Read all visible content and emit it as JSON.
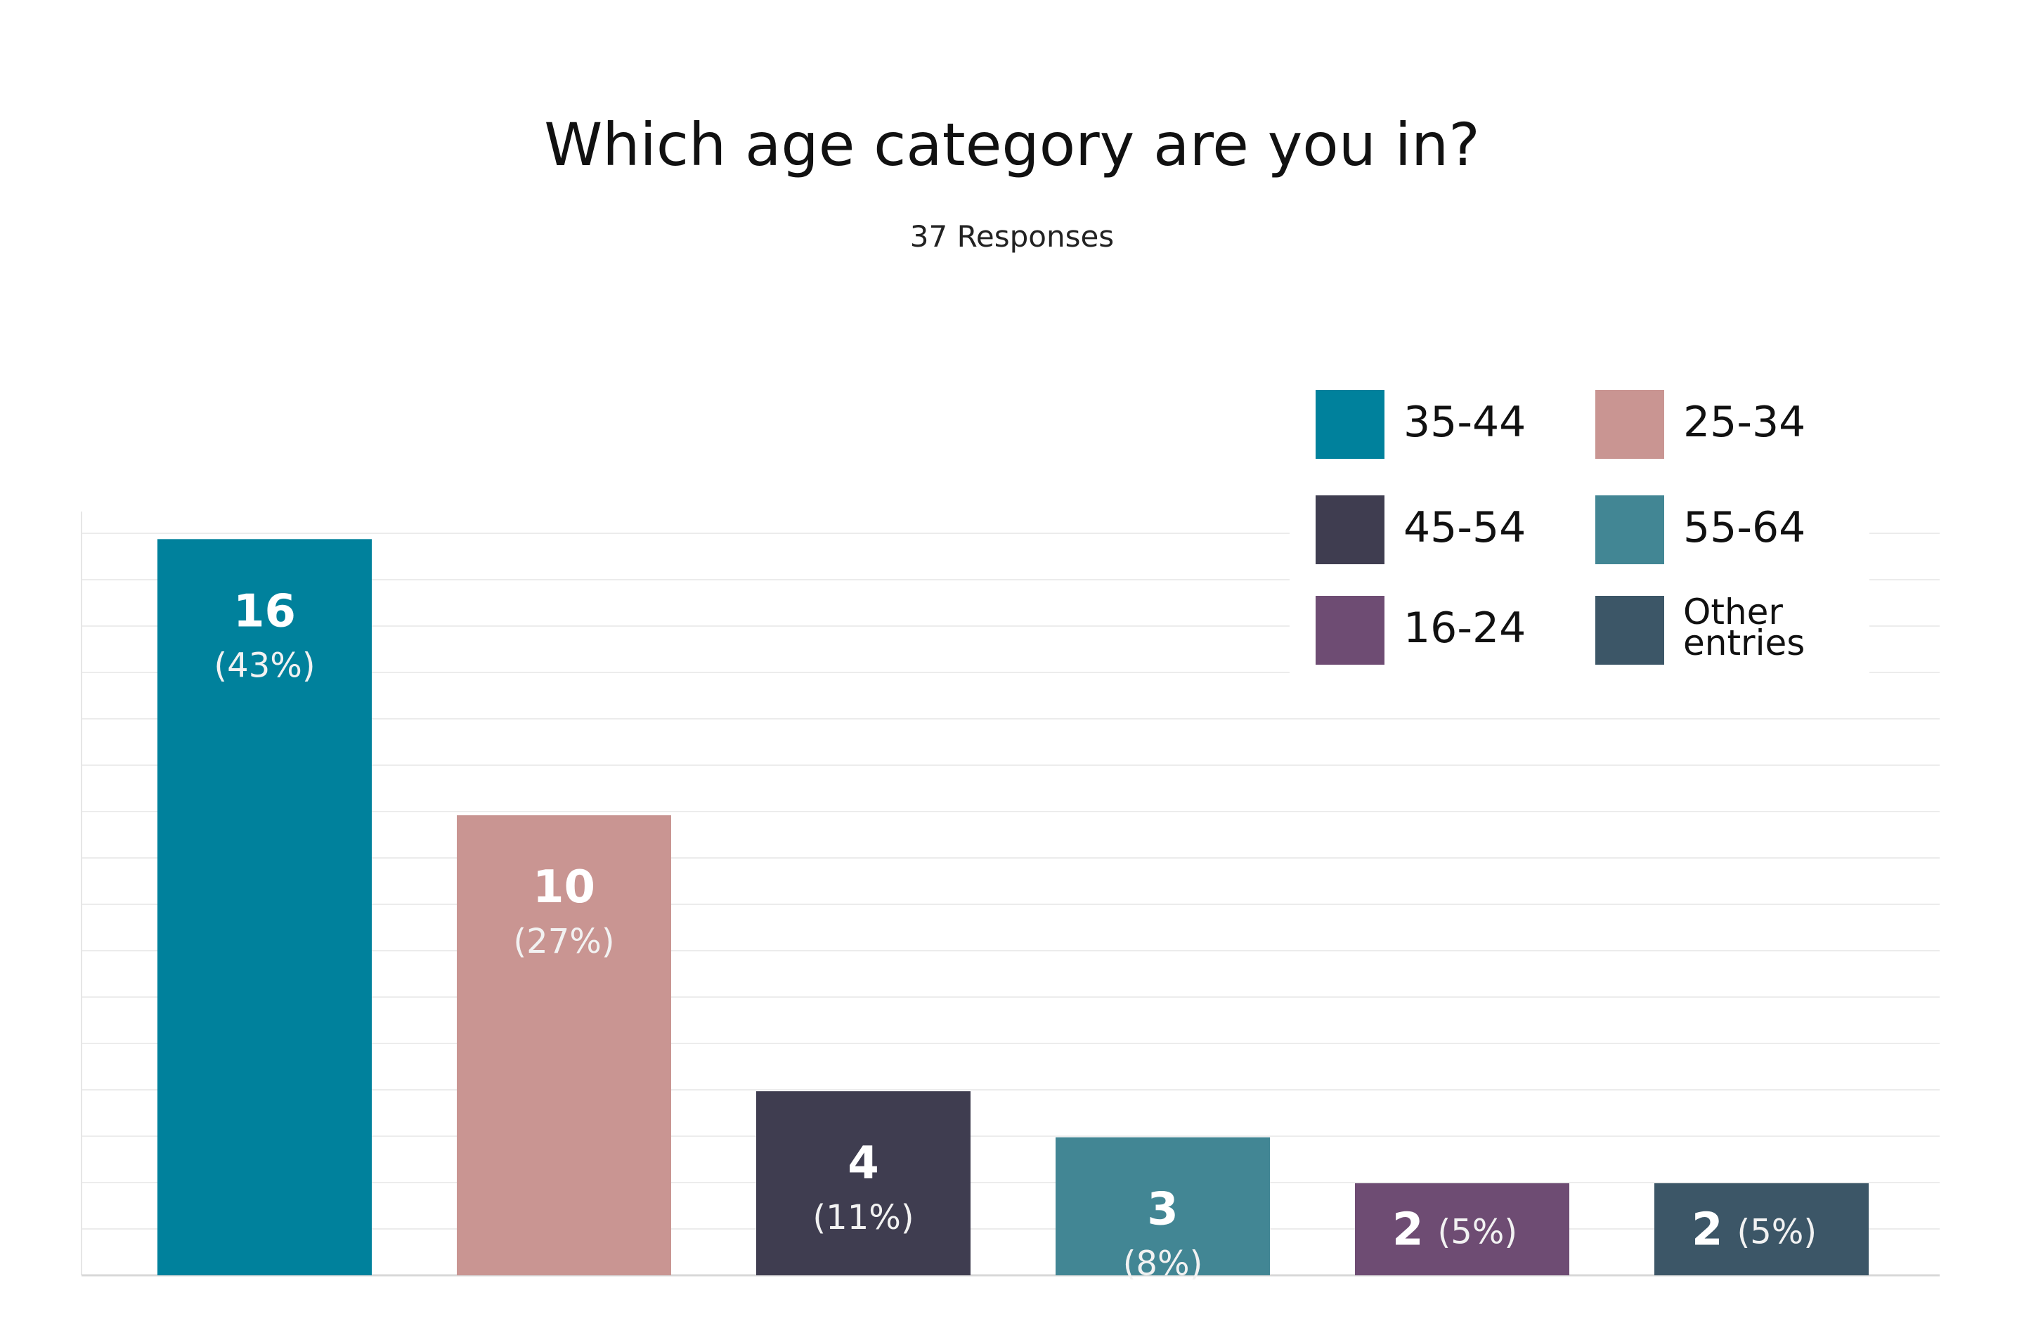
{
  "chart_data": {
    "type": "bar",
    "title": "Which age category are you in?",
    "subtitle": "37 Responses",
    "categories": [
      "35-44",
      "25-34",
      "45-54",
      "55-64",
      "16-24",
      "Other entries"
    ],
    "values": [
      16,
      10,
      4,
      3,
      2,
      2
    ],
    "percent_labels": [
      "(43%)",
      "(27%)",
      "(11%)",
      "(8%)",
      "(5%)",
      "(5%)"
    ],
    "colors": [
      "#00819c",
      "#c99592",
      "#3f3d50",
      "#428694",
      "#6e4c73",
      "#3c5667"
    ],
    "ylim": [
      0,
      16.6
    ],
    "grid": true,
    "legend": {
      "placement": "top-right",
      "entries": [
        {
          "label": "35-44",
          "color": "#00819c"
        },
        {
          "label": "25-34",
          "color": "#c99592"
        },
        {
          "label": "45-54",
          "color": "#3f3d50"
        },
        {
          "label": "55-64",
          "color": "#428694"
        },
        {
          "label": "16-24",
          "color": "#6e4c73"
        },
        {
          "label": "Other entries",
          "color": "#3c5667"
        }
      ]
    },
    "xlabel": "",
    "ylabel": ""
  }
}
